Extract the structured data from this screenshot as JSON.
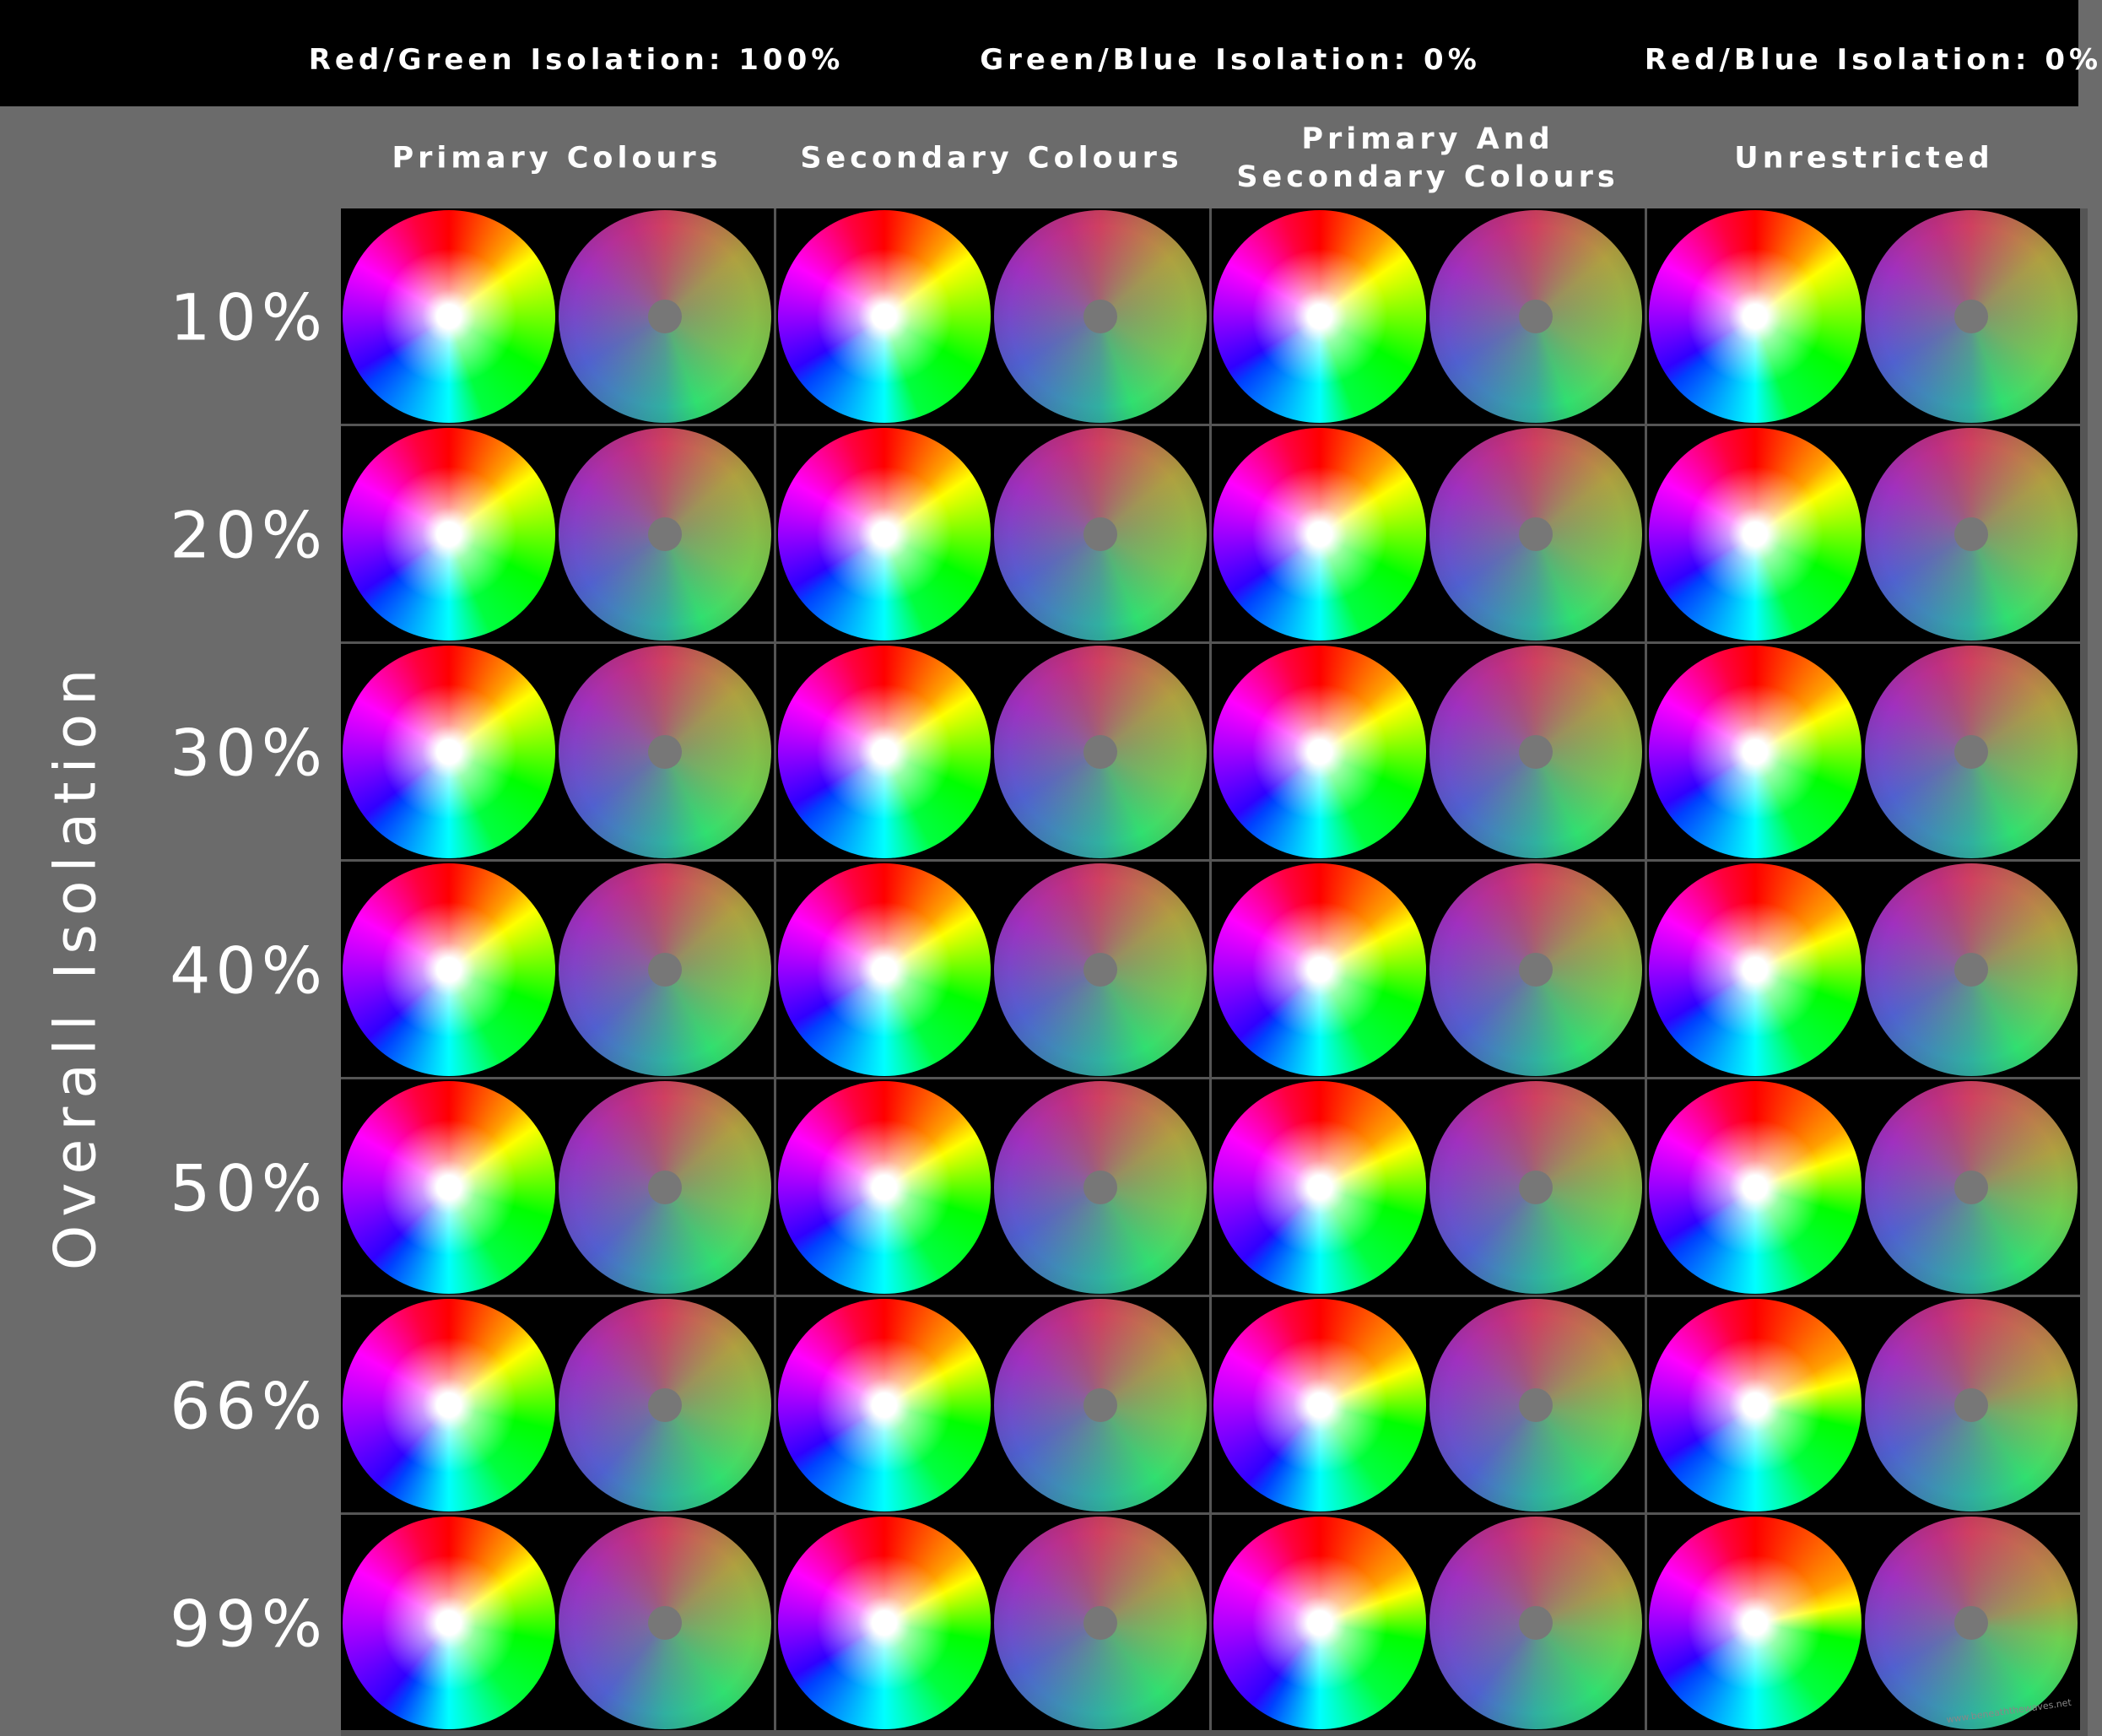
{
  "header": {
    "isolations": [
      "Red/Green Isolation: 100%",
      "Green/Blue Isolation: 0%",
      "Red/Blue Isolation: 0%"
    ]
  },
  "axis_title": "Overall Isolation",
  "columns": [
    [
      "Primary Colours"
    ],
    [
      "Secondary Colours"
    ],
    [
      "Primary And",
      "Secondary Colours"
    ],
    [
      "Unrestricted"
    ]
  ],
  "rows": [
    "10%",
    "20%",
    "30%",
    "40%",
    "50%",
    "66%",
    "99%"
  ],
  "watermark": "www.beneaththewaves.net"
}
